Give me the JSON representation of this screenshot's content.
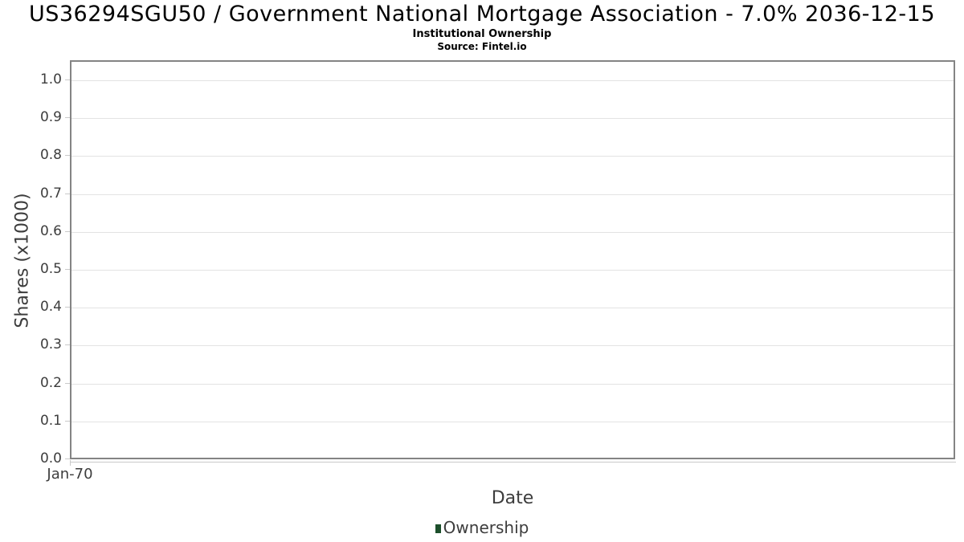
{
  "header": {
    "title": "US36294SGU50 / Government National Mortgage Association - 7.0% 2036-12-15",
    "subtitle": "Institutional Ownership",
    "source": "Source: Fintel.io"
  },
  "colors": {
    "ownership_series": "#1d4f2b",
    "plot_border": "#848484",
    "gridline": "#e3e3e3",
    "tick": "#c9c9c9",
    "axis_text": "#3d3d3d",
    "title_text": "#000000"
  },
  "chart_data": {
    "type": "line",
    "title": "US36294SGU50 / Government National Mortgage Association - 7.0% 2036-12-15",
    "subtitle": "Institutional Ownership",
    "source": "Source: Fintel.io",
    "xlabel": "Date",
    "ylabel": "Shares (x1000)",
    "x_tick_labels": [
      "Jan-70"
    ],
    "ytick_labels": [
      "0.0",
      "0.1",
      "0.2",
      "0.3",
      "0.4",
      "0.5",
      "0.6",
      "0.7",
      "0.8",
      "0.9",
      "1.0"
    ],
    "ylim": [
      0.0,
      1.05
    ],
    "grid": "horizontal",
    "legend_position": "bottom-center",
    "series": [
      {
        "name": "Ownership",
        "color": "#1d4f2b",
        "x": [],
        "values": []
      }
    ]
  }
}
